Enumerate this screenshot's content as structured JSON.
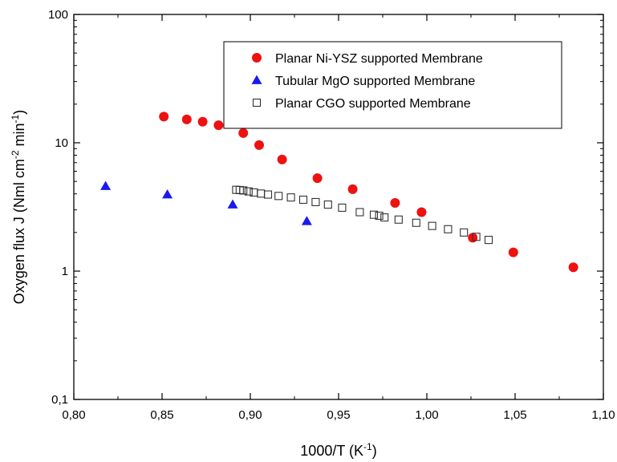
{
  "chart_data": {
    "type": "scatter",
    "xlabel": "1000/T (K",
    "xlabel_sup": "-1",
    "xlabel_end": ")",
    "ylabel": "Oxygen flux J (Nml cm",
    "ylabel_sup1": "-2",
    "ylabel_mid": " min",
    "ylabel_sup2": "-1",
    "ylabel_end": ")",
    "xlim": [
      0.8,
      1.1
    ],
    "ylim": [
      0.1,
      100
    ],
    "yscale": "log",
    "x_ticks": [
      0.8,
      0.85,
      0.9,
      0.95,
      1.0,
      1.05,
      1.1
    ],
    "x_tick_labels": [
      "0,80",
      "0,85",
      "0,90",
      "0,95",
      "1,00",
      "1,05",
      "1,10"
    ],
    "y_ticks": [
      0.1,
      1,
      10,
      100
    ],
    "y_tick_labels": [
      "0,1",
      "1",
      "10",
      "100"
    ],
    "grid": false,
    "legend_position": "top-right",
    "series": [
      {
        "name": "Planar Ni-YSZ supported Membrane",
        "marker": "circle-filled",
        "color": "#ee1111",
        "points": [
          [
            0.851,
            16.0
          ],
          [
            0.864,
            15.2
          ],
          [
            0.873,
            14.6
          ],
          [
            0.882,
            13.7
          ],
          [
            0.896,
            11.9
          ],
          [
            0.905,
            9.6
          ],
          [
            0.918,
            7.4
          ],
          [
            0.938,
            5.3
          ],
          [
            0.958,
            4.35
          ],
          [
            0.982,
            3.4
          ],
          [
            0.997,
            2.88
          ],
          [
            1.026,
            1.82
          ],
          [
            1.049,
            1.4
          ],
          [
            1.083,
            1.07
          ]
        ]
      },
      {
        "name": "Tubular MgO supported Membrane",
        "marker": "triangle-filled",
        "color": "#1a1aee",
        "points": [
          [
            0.818,
            4.6
          ],
          [
            0.853,
            3.95
          ],
          [
            0.89,
            3.3
          ],
          [
            0.932,
            2.45
          ]
        ]
      },
      {
        "name": "Planar CGO supported Membrane",
        "marker": "square-open",
        "color": "#333333",
        "points": [
          [
            0.892,
            4.3
          ],
          [
            0.894,
            4.28
          ],
          [
            0.896,
            4.25
          ],
          [
            0.899,
            4.18
          ],
          [
            0.902,
            4.1
          ],
          [
            0.906,
            4.02
          ],
          [
            0.91,
            3.95
          ],
          [
            0.916,
            3.85
          ],
          [
            0.923,
            3.75
          ],
          [
            0.93,
            3.6
          ],
          [
            0.937,
            3.45
          ],
          [
            0.944,
            3.3
          ],
          [
            0.952,
            3.12
          ],
          [
            0.962,
            2.88
          ],
          [
            0.97,
            2.75
          ],
          [
            0.973,
            2.7
          ],
          [
            0.976,
            2.62
          ],
          [
            0.984,
            2.52
          ],
          [
            0.994,
            2.38
          ],
          [
            1.003,
            2.25
          ],
          [
            1.012,
            2.12
          ],
          [
            1.021,
            2.0
          ],
          [
            1.028,
            1.85
          ],
          [
            1.035,
            1.75
          ]
        ]
      }
    ]
  }
}
